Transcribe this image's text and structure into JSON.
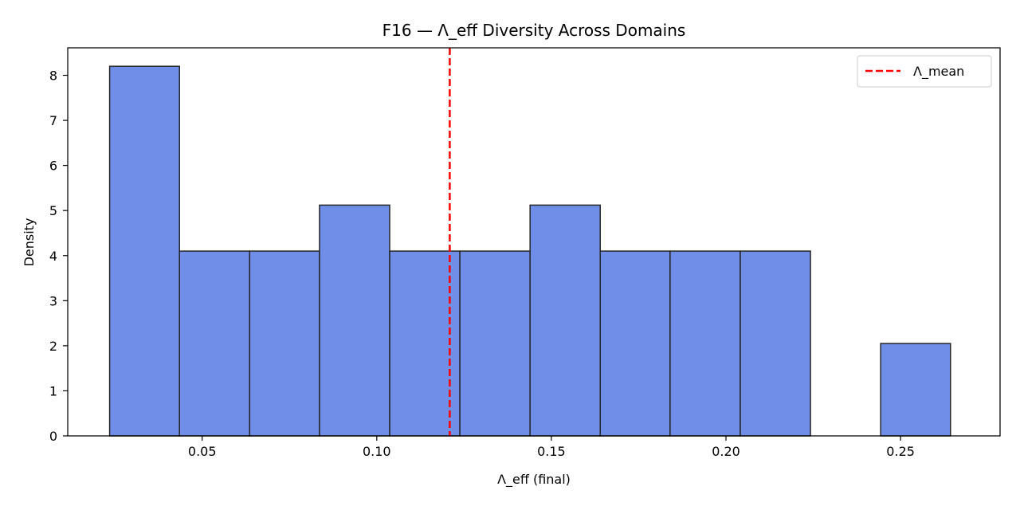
{
  "chart_data": {
    "type": "bar",
    "subtype": "histogram",
    "title": "F16 — Λ_eff Diversity Across Domains",
    "xlabel": "Λ_eff (final)",
    "ylabel": "Density",
    "xlim": [
      0.0115,
      0.2785
    ],
    "ylim": [
      0,
      8.61
    ],
    "xticks": [
      0.05,
      0.1,
      0.15,
      0.2,
      0.25
    ],
    "xtick_labels": [
      "0.05",
      "0.10",
      "0.15",
      "0.20",
      "0.25"
    ],
    "yticks": [
      0,
      1,
      2,
      3,
      4,
      5,
      6,
      7,
      8
    ],
    "ytick_labels": [
      "0",
      "1",
      "2",
      "3",
      "4",
      "5",
      "6",
      "7",
      "8"
    ],
    "bins": [
      {
        "x0": 0.0235,
        "x1": 0.0435,
        "value": 8.2
      },
      {
        "x0": 0.0435,
        "x1": 0.0636,
        "value": 4.1
      },
      {
        "x0": 0.0636,
        "x1": 0.0836,
        "value": 4.1
      },
      {
        "x0": 0.0836,
        "x1": 0.1037,
        "value": 5.12
      },
      {
        "x0": 0.1037,
        "x1": 0.1238,
        "value": 4.1
      },
      {
        "x0": 0.1238,
        "x1": 0.1439,
        "value": 4.1
      },
      {
        "x0": 0.1439,
        "x1": 0.164,
        "value": 5.12
      },
      {
        "x0": 0.164,
        "x1": 0.184,
        "value": 4.1
      },
      {
        "x0": 0.184,
        "x1": 0.2041,
        "value": 4.1
      },
      {
        "x0": 0.2041,
        "x1": 0.2242,
        "value": 4.1
      },
      {
        "x0": 0.2242,
        "x1": 0.2443,
        "value": 0
      },
      {
        "x0": 0.2443,
        "x1": 0.2643,
        "value": 2.05
      }
    ],
    "mean_line": {
      "x": 0.1209,
      "label": "Λ_mean",
      "color": "#ff0000",
      "style": "dashed"
    },
    "bar_color": "#6f8ee8",
    "bar_edge_color": "#262626",
    "legend": {
      "position": "top-right",
      "entries": [
        "Λ_mean"
      ]
    },
    "grid": false
  }
}
